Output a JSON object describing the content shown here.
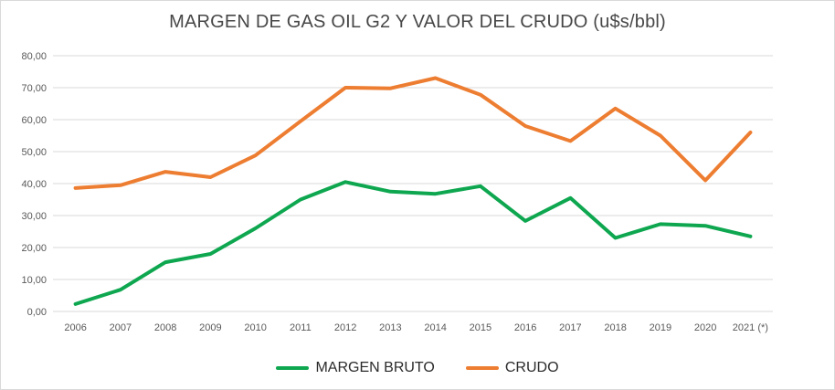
{
  "chart_data": {
    "type": "line",
    "title": "MARGEN DE GAS OIL G2 Y VALOR DEL CRUDO (u$s/bbl)",
    "categories": [
      "2006",
      "2007",
      "2008",
      "2009",
      "2010",
      "2011",
      "2012",
      "2013",
      "2014",
      "2015",
      "2016",
      "2017",
      "2018",
      "2019",
      "2020",
      "2021 (*)"
    ],
    "series": [
      {
        "name": "MARGEN BRUTO",
        "color": "#0ea750",
        "values": [
          2.3,
          6.8,
          15.4,
          18.0,
          26.0,
          35.0,
          40.5,
          37.5,
          36.8,
          39.2,
          28.3,
          35.5,
          23.0,
          27.3,
          26.8,
          23.5
        ]
      },
      {
        "name": "CRUDO",
        "color": "#ed7d31",
        "values": [
          38.6,
          39.5,
          43.7,
          42.0,
          48.8,
          59.5,
          70.0,
          69.8,
          73.0,
          67.8,
          58.0,
          53.3,
          63.5,
          55.0,
          41.0,
          56.0
        ]
      }
    ],
    "ylim": [
      0,
      80
    ],
    "ytick_step": 10,
    "ytick_labels": [
      "0,00",
      "10,00",
      "20,00",
      "30,00",
      "40,00",
      "50,00",
      "60,00",
      "70,00",
      "80,00"
    ],
    "grid": true,
    "legend_position": "bottom"
  },
  "colors": {
    "background": "#ffffff",
    "border": "#d9d9d9",
    "gridline": "#d9d9d9",
    "axis_text": "#595959",
    "title_text": "#474747"
  }
}
